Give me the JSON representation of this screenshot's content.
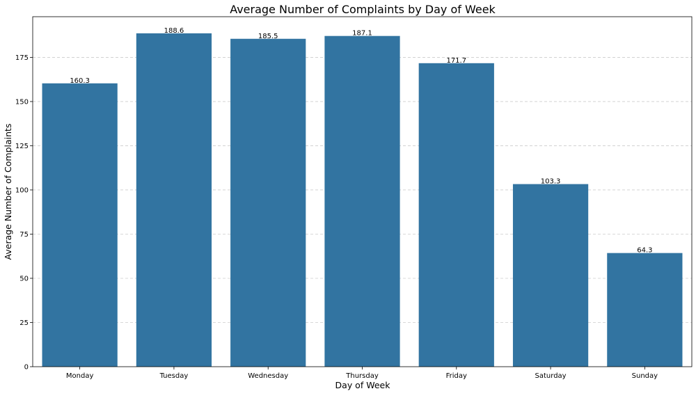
{
  "chart_data": {
    "type": "bar",
    "title": "Average Number of Complaints by Day of Week",
    "xlabel": "Day of Week",
    "ylabel": "Average Number of Complaints",
    "categories": [
      "Monday",
      "Tuesday",
      "Wednesday",
      "Thursday",
      "Friday",
      "Saturday",
      "Sunday"
    ],
    "values": [
      160.3,
      188.6,
      185.5,
      187.1,
      171.7,
      103.3,
      64.3
    ],
    "value_labels": [
      "160.3",
      "188.6",
      "185.5",
      "187.1",
      "171.7",
      "103.3",
      "64.3"
    ],
    "ylim": [
      0,
      198
    ],
    "yticks": [
      0,
      25,
      50,
      75,
      100,
      125,
      150,
      175
    ],
    "grid": "y-dashed",
    "legend": "none",
    "colors": {
      "bar": "#3274a1",
      "grid": "#cccccc",
      "axis": "#000000",
      "text": "#000000"
    }
  }
}
